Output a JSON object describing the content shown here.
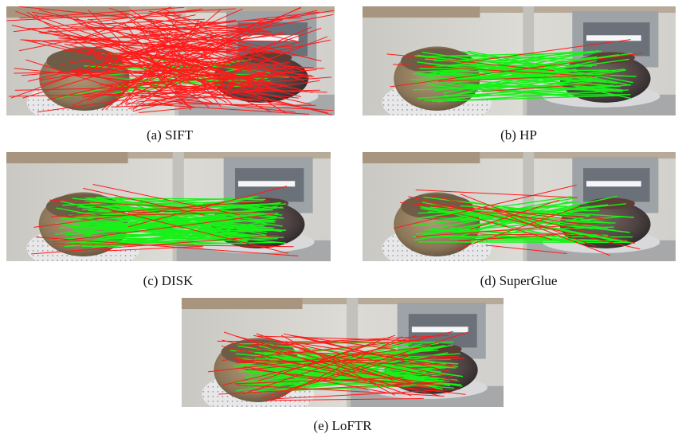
{
  "figure": {
    "panels": [
      {
        "label": "(a)",
        "name": "SIFT"
      },
      {
        "label": "(b)",
        "name": "HP"
      },
      {
        "label": "(c)",
        "name": "DISK"
      },
      {
        "label": "(d)",
        "name": "SuperGlue"
      },
      {
        "label": "(e)",
        "name": "LoFTR"
      }
    ]
  }
}
